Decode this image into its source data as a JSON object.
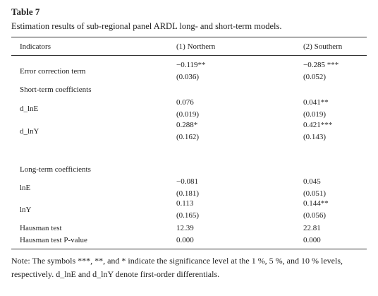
{
  "title": "Table 7",
  "caption": "Estimation results of sub-regional panel ARDL long- and short-term models.",
  "table": {
    "header": [
      "Indicators",
      "(1) Northern",
      "(2) Southern"
    ],
    "rows": [
      [
        "Error correction term",
        "−0.119**",
        "(0.036)",
        "−0.285 ***",
        "(0.052)"
      ],
      [
        "Short-term coefficients"
      ],
      [
        "d_lnE",
        "0.076",
        "(0.019)",
        "0.041**",
        "(0.019)"
      ],
      [
        "d_lnY",
        "0.288*",
        "(0.162)",
        "0.421***",
        "(0.143)"
      ],
      [
        "Long-term coefficients"
      ],
      [
        "lnE",
        "−0.081",
        "(0.181)",
        "0.045",
        "(0.051)"
      ],
      [
        "lnY",
        "0.113",
        "(0.165)",
        "0.144**",
        "(0.056)"
      ],
      [
        "Hausman test",
        "12.39",
        "22.81"
      ],
      [
        "Hausman test P-value",
        "0.000",
        "0.000"
      ]
    ]
  },
  "note": "Note: The symbols ***, **, and * indicate the significance level at the 1 %, 5 %, and 10 % levels, respectively. d_lnE and d_lnY denote first-order differentials."
}
